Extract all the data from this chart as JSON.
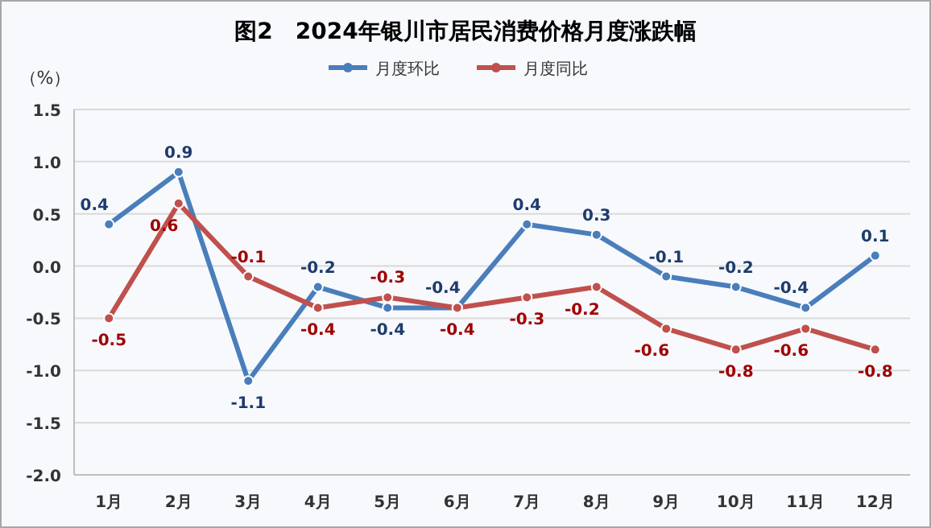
{
  "chart_data": {
    "type": "line",
    "title": "图2　2024年银川市居民消费价格月度涨跌幅",
    "ylabel": "（%）",
    "categories": [
      "1月",
      "2月",
      "3月",
      "4月",
      "5月",
      "6月",
      "7月",
      "8月",
      "9月",
      "10月",
      "11月",
      "12月"
    ],
    "series": [
      {
        "name": "月度环比",
        "color": "#4a7ebb",
        "values": [
          0.4,
          0.9,
          -1.1,
          -0.2,
          -0.4,
          -0.4,
          0.4,
          0.3,
          -0.1,
          -0.2,
          -0.4,
          0.1
        ]
      },
      {
        "name": "月度同比",
        "color": "#c0504d",
        "values": [
          -0.5,
          0.6,
          -0.1,
          -0.4,
          -0.3,
          -0.4,
          -0.3,
          -0.2,
          -0.6,
          -0.8,
          -0.6,
          -0.8
        ]
      }
    ],
    "ylim": [
      -2.0,
      1.5
    ],
    "yticks": [
      {
        "value": 1.5,
        "label": "1.5"
      },
      {
        "value": 1.0,
        "label": "1.0"
      },
      {
        "value": 0.5,
        "label": "0.5"
      },
      {
        "value": 0.0,
        "label": "0.0"
      },
      {
        "value": -0.5,
        "label": "-0.5"
      },
      {
        "value": -1.0,
        "label": "-1.0"
      },
      {
        "value": -1.5,
        "label": "-1.5"
      },
      {
        "value": -2.0,
        "label": "-2.0"
      }
    ],
    "grid": "y",
    "legend": "top",
    "marker": "circle",
    "line_style": "solid",
    "data_labels": true
  }
}
